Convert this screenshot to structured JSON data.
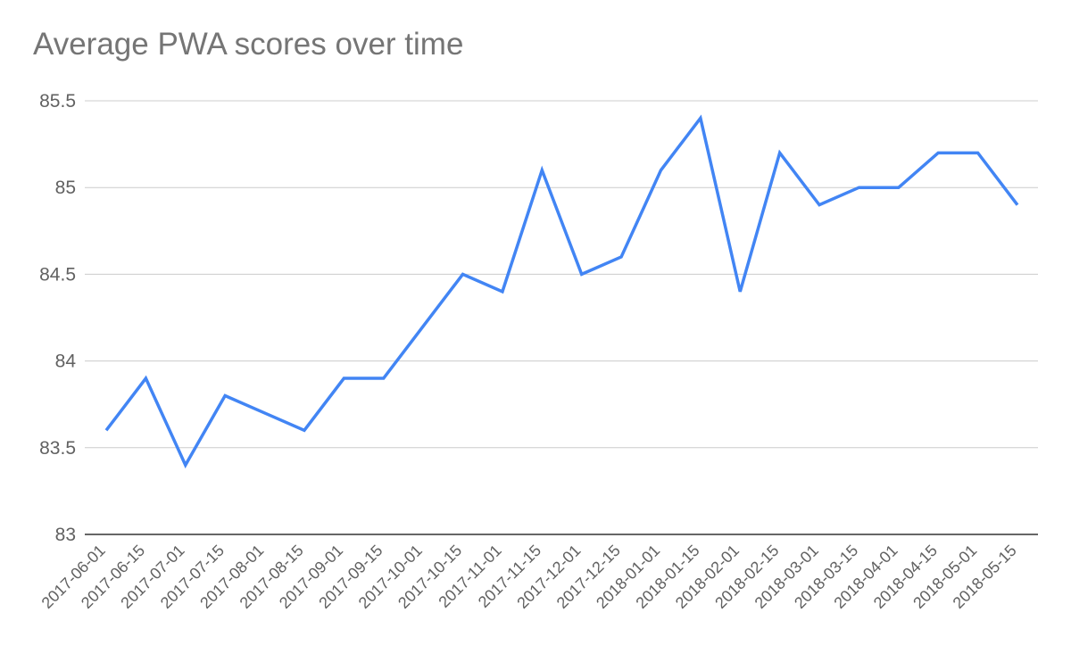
{
  "chart_data": {
    "type": "line",
    "title": "Average PWA scores over time",
    "xlabel": "",
    "ylabel": "",
    "ylim": [
      83,
      85.5
    ],
    "yticks": [
      "83",
      "83.5",
      "84",
      "84.5",
      "85",
      "85.5"
    ],
    "grid": true,
    "legend": "none",
    "categories": [
      "2017-06-01",
      "2017-06-15",
      "2017-07-01",
      "2017-07-15",
      "2017-08-01",
      "2017-08-15",
      "2017-09-01",
      "2017-09-15",
      "2017-10-01",
      "2017-10-15",
      "2017-11-01",
      "2017-11-15",
      "2017-12-01",
      "2017-12-15",
      "2018-01-01",
      "2018-01-15",
      "2018-02-01",
      "2018-02-15",
      "2018-03-01",
      "2018-03-15",
      "2018-04-01",
      "2018-04-15",
      "2018-05-01",
      "2018-05-15"
    ],
    "series": [
      {
        "color": "#4285F4",
        "values": [
          83.6,
          83.9,
          83.4,
          83.8,
          83.7,
          83.6,
          83.9,
          83.9,
          84.2,
          84.5,
          84.4,
          85.1,
          84.5,
          84.6,
          85.1,
          85.4,
          84.4,
          85.2,
          84.9,
          85.0,
          85.0,
          85.2,
          85.2,
          84.9
        ]
      }
    ],
    "colors": {
      "line": "#4285F4",
      "grid": "#cccccc",
      "axis": "#333333",
      "text": "#616161",
      "title": "#757575"
    }
  }
}
